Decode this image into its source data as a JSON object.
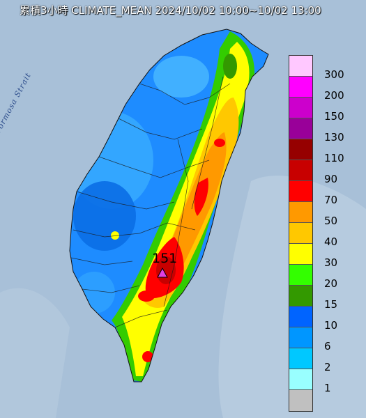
{
  "title": "累積3小時 CLIMATE_MEAN 2024/10/02 10:00~10/02 13:00",
  "sea_label": "Formosa Strait",
  "max_value_label": "151",
  "legend": {
    "levels": [
      {
        "label": "300",
        "color": "#ffc8ff"
      },
      {
        "label": "200",
        "color": "#ff00ff"
      },
      {
        "label": "150",
        "color": "#cc00cc"
      },
      {
        "label": "130",
        "color": "#990099"
      },
      {
        "label": "110",
        "color": "#960000"
      },
      {
        "label": "90",
        "color": "#c80000"
      },
      {
        "label": "70",
        "color": "#ff0000"
      },
      {
        "label": "50",
        "color": "#ff9900"
      },
      {
        "label": "40",
        "color": "#ffc800"
      },
      {
        "label": "30",
        "color": "#ffff00"
      },
      {
        "label": "20",
        "color": "#33ff00"
      },
      {
        "label": "15",
        "color": "#339900"
      },
      {
        "label": "10",
        "color": "#0064ff"
      },
      {
        "label": "6",
        "color": "#0096ff"
      },
      {
        "label": "2",
        "color": "#00c8ff"
      },
      {
        "label": "1",
        "color": "#99ffff"
      },
      {
        "label": "",
        "color": "#c0c0c0"
      }
    ]
  },
  "colors": {
    "sea": "#a8c0d8",
    "land_base": "#1e8cff"
  }
}
